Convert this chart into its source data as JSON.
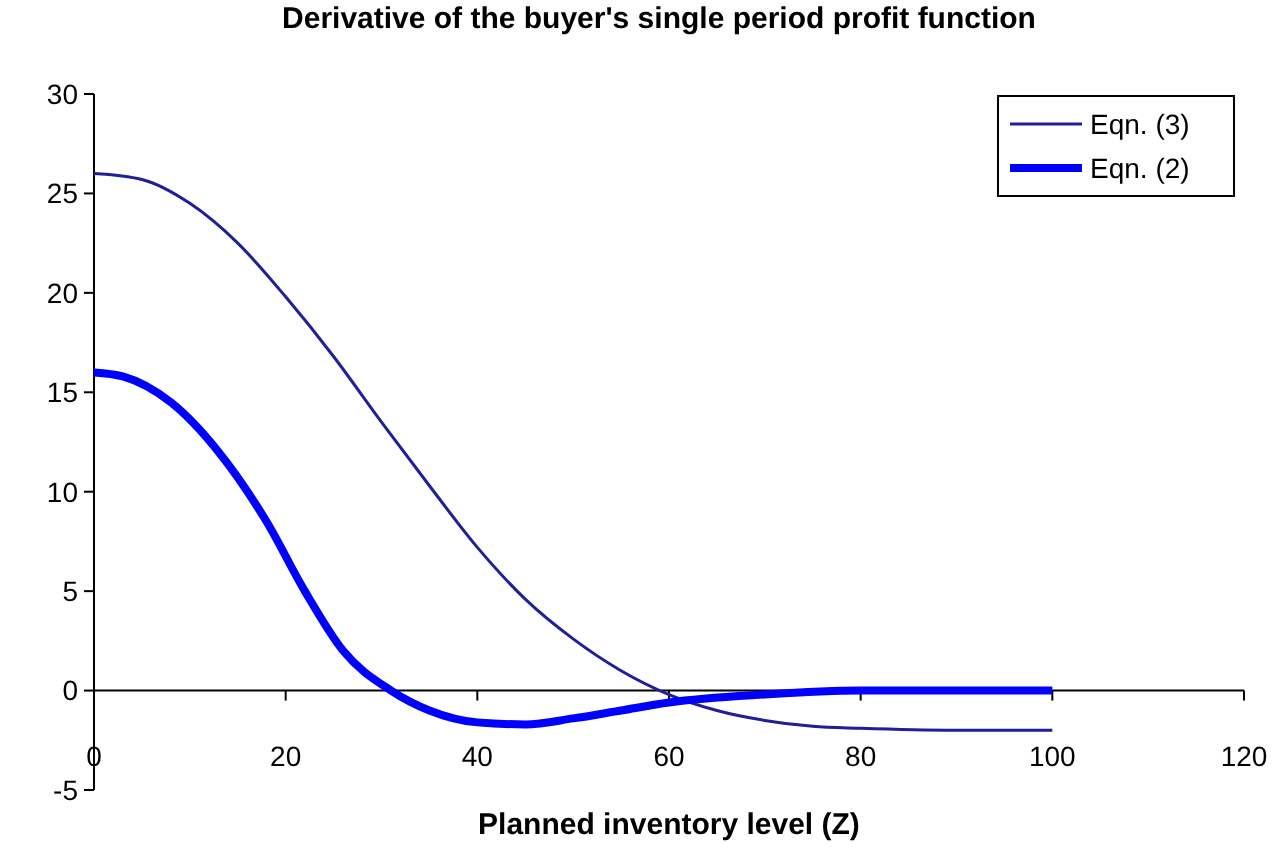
{
  "chart_data": {
    "type": "line",
    "title": "Derivative of the buyer's single period profit function",
    "xlabel": "Planned inventory level (Z)",
    "xlim": [
      0,
      120
    ],
    "xticks": [
      0,
      20,
      40,
      60,
      80,
      100,
      120
    ],
    "ylim": [
      -5,
      30
    ],
    "yticks": [
      -5,
      0,
      5,
      10,
      15,
      20,
      25,
      30
    ],
    "grid": false,
    "legend": "top right",
    "marker": "none",
    "series": [
      {
        "name": "Eqn. (3)",
        "color": "#1f1f99",
        "x": [
          0,
          5,
          10,
          15,
          20,
          25,
          30,
          35,
          40,
          45,
          50,
          55,
          60,
          65,
          70,
          75,
          80,
          90,
          100
        ],
        "values": [
          26,
          25.7,
          24.5,
          22.5,
          19.8,
          16.8,
          13.5,
          10.3,
          7.2,
          4.6,
          2.6,
          1,
          -0.2,
          -1,
          -1.5,
          -1.8,
          -1.9,
          -2,
          -2
        ]
      },
      {
        "name": "Eqn. (2)",
        "color": "#0000ff",
        "x": [
          0,
          3,
          8,
          13,
          18,
          22,
          26,
          31,
          35,
          40,
          45,
          50,
          55,
          60,
          70,
          80,
          90,
          100
        ],
        "values": [
          16,
          15.8,
          14.5,
          12,
          8.5,
          5,
          2,
          0,
          -1,
          -1.6,
          -1.7,
          -1.4,
          -1,
          -0.6,
          -0.2,
          0,
          0,
          0
        ]
      }
    ]
  }
}
